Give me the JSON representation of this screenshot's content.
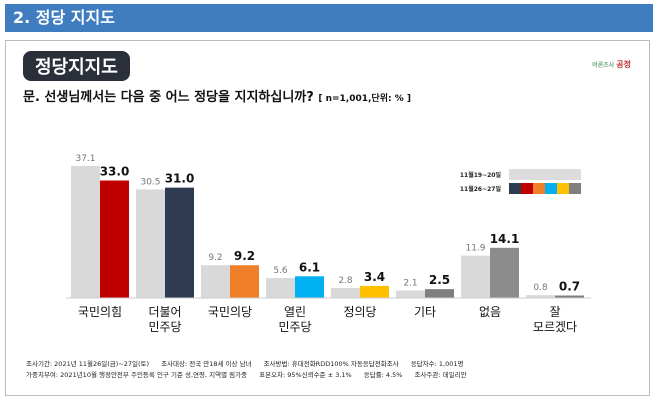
{
  "header": {
    "title": "2. 정당 지지도"
  },
  "badge": "정당지지도",
  "logo": {
    "text": "여론조사",
    "brand": "공정"
  },
  "question": {
    "text": "문. 선생님께서는 다음 중 어느 정당을 지지하십니까?",
    "note": "[ n=1,001,단위: % ]"
  },
  "chart_data": {
    "type": "bar",
    "title": "정당지지도",
    "categories": [
      "국민의힘",
      "더불어\n민주당",
      "국민의당",
      "열린\n민주당",
      "정의당",
      "기타",
      "없음",
      "잘\n모르겠다"
    ],
    "series": [
      {
        "name": "11월19~20일",
        "values": [
          37.1,
          30.5,
          9.2,
          5.6,
          2.8,
          2.1,
          11.9,
          0.8
        ],
        "color": "#d9d9d9"
      },
      {
        "name": "11월26~27일",
        "values": [
          33.0,
          31.0,
          9.2,
          6.1,
          3.4,
          2.5,
          14.1,
          0.7
        ],
        "colors": [
          "#c00000",
          "#2f3b50",
          "#f07f2a",
          "#00b0f0",
          "#ffc000",
          "#7f7f7f",
          "#8c8c8c",
          "#7f7f7f"
        ]
      }
    ],
    "ylim": [
      0,
      40
    ],
    "legend_placement": "top-right",
    "legend_swatches": [
      "#2f3b50",
      "#c00000",
      "#f07f2a",
      "#00b0f0",
      "#ffc000",
      "#7f7f7f"
    ]
  },
  "footer": [
    "조사기간: 2021년 11월26일(금)~27일(토)",
    "조사대상: 전국 만18세 이상 남녀",
    "조사방법: 휴대전화RDD100% 자동응답전화조사",
    "응답자수: 1,001명",
    "가중치부여: 2021년10월 행정안전부 주민등록 인구 기준 성,연령, 지역별 림가중",
    "표본오차: 95%신뢰수준 ± 3.1%",
    "응답률: 4.5%",
    "조사주관: 데일리안"
  ]
}
